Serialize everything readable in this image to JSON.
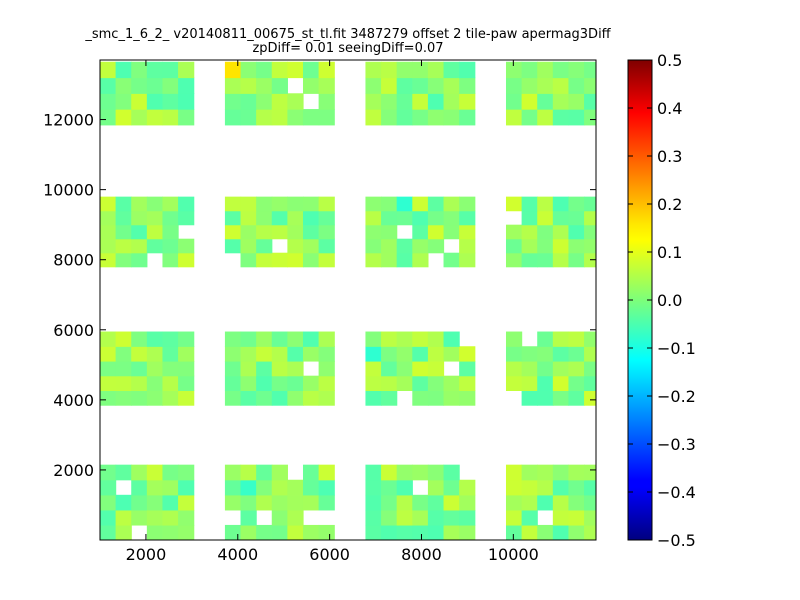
{
  "chart_data": {
    "type": "heatmap",
    "title": "_smc_1_6_2_ v20140811_00675_st_tl.fit 3487279 offset 2 tile-paw apermag3Diff",
    "subtitle": "zpDiff= 0.01 seeingDiff=0.07",
    "xlabel": "",
    "ylabel": "",
    "xlim": [
      1000,
      11800
    ],
    "ylim": [
      0,
      13700
    ],
    "xticks": [
      2000,
      4000,
      6000,
      8000,
      10000
    ],
    "yticks": [
      2000,
      4000,
      6000,
      8000,
      10000,
      12000
    ],
    "grid": false,
    "colormap": "jet",
    "colorbar": {
      "vmin": -0.5,
      "vmax": 0.5,
      "ticks": [
        0.5,
        0.4,
        0.3,
        0.2,
        0.1,
        0.0,
        -0.1,
        -0.2,
        -0.3,
        -0.4,
        -0.5
      ],
      "tick_labels": [
        "0.5",
        "0.4",
        "0.3",
        "0.2",
        "0.1",
        "0.0",
        "−0.1",
        "−0.2",
        "−0.3",
        "−0.4",
        "−0.5"
      ]
    },
    "cell_size": [
      340,
      400
    ],
    "x_columns": [
      1000,
      1340,
      1680,
      2020,
      2360,
      2700,
      3040,
      3380,
      3720,
      4060,
      4400,
      4740,
      5080,
      5420,
      5760,
      6100,
      6440,
      6780,
      7120,
      7460,
      7800,
      8140,
      8480,
      8820,
      9160,
      9500,
      9840,
      10180,
      10520,
      10860,
      11200,
      11540
    ],
    "row_bands": [
      {
        "y_start": 11850,
        "y_end": 13650,
        "rows": 4
      },
      {
        "y_start": 7800,
        "y_end": 9800,
        "rows": 5
      },
      {
        "y_start": 3850,
        "y_end": 5950,
        "rows": 5
      },
      {
        "y_start": 0,
        "y_end": 2150,
        "rows": 5
      }
    ],
    "detector_columns": [
      {
        "x_start": 1000,
        "x_end": 3000
      },
      {
        "x_start": 3700,
        "x_end": 6000
      },
      {
        "x_start": 6800,
        "x_end": 9000
      },
      {
        "x_start": 9800,
        "x_end": 11800
      }
    ],
    "values_typical_range": [
      -0.05,
      0.08
    ],
    "outliers": [
      {
        "x": 3850,
        "y": 13500,
        "value": 0.15
      },
      {
        "x": 7650,
        "y": 9500,
        "value": -0.08
      },
      {
        "x": 6950,
        "y": 5150,
        "value": -0.08
      },
      {
        "x": 4200,
        "y": 1650,
        "value": -0.07
      },
      {
        "x": 5900,
        "y": 1650,
        "value": -0.05
      },
      {
        "x": 9050,
        "y": 5150,
        "value": 0.08
      },
      {
        "x": 8950,
        "y": 12350,
        "value": 0.07
      },
      {
        "x": 1500,
        "y": 1150,
        "value": -0.05
      },
      {
        "x": 10000,
        "y": 9400,
        "value": 0.08
      },
      {
        "x": 11300,
        "y": 650,
        "value": 0.07
      }
    ]
  }
}
